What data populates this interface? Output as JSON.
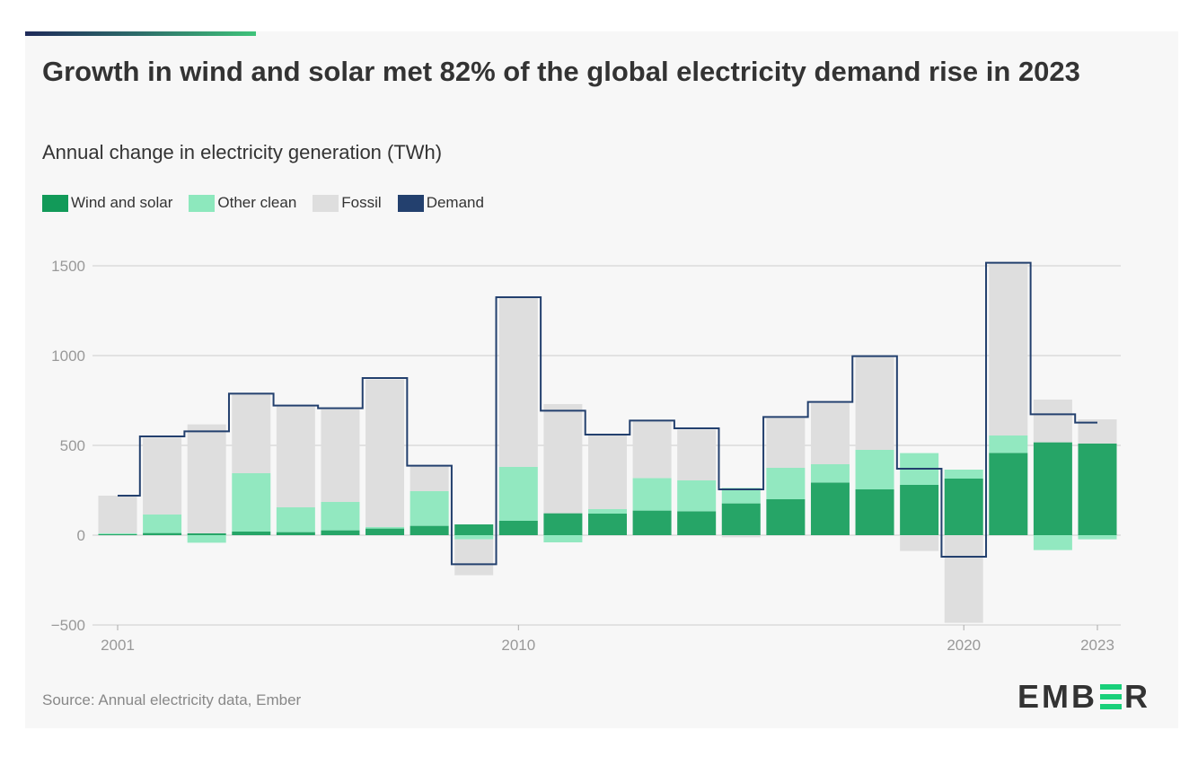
{
  "title": "Growth in wind and solar met 82% of the global electricity demand rise in 2023",
  "subtitle": "Annual change in electricity generation (TWh)",
  "source": "Source: Annual electricity data, Ember",
  "logo_text": "EMBER",
  "colors": {
    "wind_solar": "#26a567",
    "other_clean": "#92e8c0",
    "fossil": "#dedede",
    "demand": "#23406e",
    "grid": "#cccccc"
  },
  "chart_data": {
    "type": "bar",
    "stacked": true,
    "title": "Growth in wind and solar met 82% of the global electricity demand rise in 2023",
    "ylabel": "Annual change in electricity generation (TWh)",
    "ylim": [
      -500,
      1500
    ],
    "yticks": [
      "1500",
      "1000",
      "500",
      "0",
      "−500"
    ],
    "ytick_values": [
      1500,
      1000,
      500,
      0,
      -500
    ],
    "xtick_labels": [
      "2001",
      "2010",
      "2020",
      "2023"
    ],
    "xtick_values": [
      2001,
      2010,
      2020,
      2023
    ],
    "grid": true,
    "legend_position": "top-left",
    "legend": [
      "Wind and solar",
      "Other clean",
      "Fossil",
      "Demand"
    ],
    "years": [
      2001,
      2002,
      2003,
      2004,
      2005,
      2006,
      2007,
      2008,
      2009,
      2010,
      2011,
      2012,
      2013,
      2014,
      2015,
      2016,
      2017,
      2018,
      2019,
      2020,
      2021,
      2022,
      2023
    ],
    "series": [
      {
        "name": "Wind and solar",
        "type": "bar",
        "values": [
          5,
          12,
          10,
          20,
          17,
          27,
          37,
          52,
          60,
          80,
          122,
          120,
          137,
          133,
          177,
          200,
          293,
          255,
          280,
          315,
          458,
          517,
          510
        ]
      },
      {
        "name": "Other clean",
        "type": "bar",
        "values": [
          5,
          103,
          -42,
          325,
          138,
          158,
          8,
          193,
          -23,
          300,
          -40,
          25,
          181,
          172,
          86,
          175,
          102,
          220,
          177,
          50,
          97,
          -83,
          -23
        ]
      },
      {
        "name": "Fossil",
        "type": "bar",
        "values": [
          210,
          428,
          607,
          438,
          562,
          515,
          822,
          138,
          -200,
          942,
          608,
          410,
          315,
          283,
          -12,
          277,
          340,
          518,
          -88,
          -488,
          958,
          238,
          135
        ]
      },
      {
        "name": "Demand",
        "type": "step-line",
        "values": [
          220,
          550,
          578,
          788,
          722,
          707,
          875,
          387,
          -162,
          1325,
          693,
          560,
          638,
          595,
          255,
          658,
          742,
          997,
          370,
          -120,
          1517,
          673,
          627
        ]
      }
    ]
  }
}
